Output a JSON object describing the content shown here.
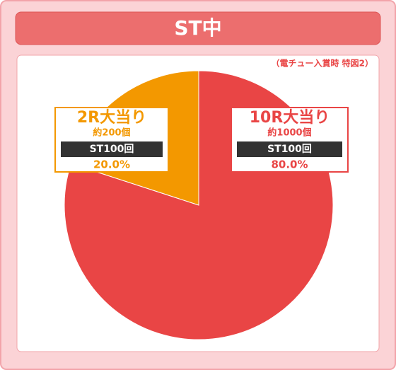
{
  "chart_data": {
    "type": "pie",
    "title": "ST中",
    "subtitle": "（電チュー入賞時 特図2）",
    "categories": [
      "2R大当り",
      "10R大当り"
    ],
    "values": [
      20,
      80
    ],
    "value_labels": [
      "20.0%",
      "80.0%"
    ],
    "bonus_balls": [
      "約200個",
      "約1000個"
    ],
    "st_counts": [
      "ST100回",
      "ST100回"
    ],
    "colors": [
      "#f39800",
      "#e94545"
    ]
  }
}
